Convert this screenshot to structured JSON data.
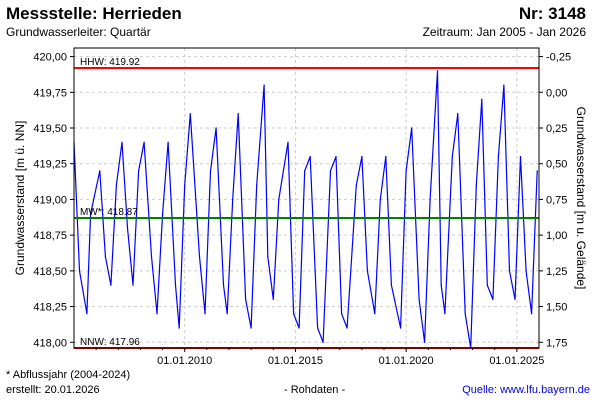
{
  "header": {
    "title": "Messstelle: Herrieden",
    "number": "Nr: 3148",
    "aquifer": "Grundwasserleiter: Quartär",
    "period": "Zeitraum: Jan 2005 - Jan 2026"
  },
  "footer": {
    "note": "* Abflussjahr (2004-2024)",
    "created": "erstellt:  20.01.2026",
    "raw": "- Rohdaten -",
    "source_label": "Quelle: ",
    "source_link": "www.lfu.bayern.de"
  },
  "colors": {
    "series": "#0000ff",
    "extreme_lines": "#ff0000",
    "mean_line": "#008000",
    "grid": "#cccccc"
  },
  "chart_data": {
    "type": "line",
    "ylabel": "Grundwasserstand [m ü. NN]",
    "y2label": "Grundwasserstand [m u. Gelände]",
    "xlim": [
      "2005-01",
      "2026-01"
    ],
    "ylim": [
      417.96,
      420.06
    ],
    "y_ticks": [
      "418,00",
      "418,25",
      "418,50",
      "418,75",
      "419,00",
      "419,25",
      "419,50",
      "419,75",
      "420,00"
    ],
    "y2_ticks": [
      "-0,25",
      "0,00",
      "0,25",
      "0,50",
      "0,75",
      "1,00",
      "1,25",
      "1,50",
      "1,75"
    ],
    "x_ticks": [
      "01.01.2010",
      "01.01.2015",
      "01.01.2020",
      "01.01.2025"
    ],
    "grid": true,
    "reference_lines": [
      {
        "label": "HHW: 419.92",
        "value": 419.92
      },
      {
        "label": "MW*: 418.87",
        "value": 418.87
      },
      {
        "label": "NNW: 417.96",
        "value": 417.96
      }
    ],
    "series": [
      {
        "x": [
          "2005-01",
          "2005-04",
          "2005-08",
          "2005-10",
          "2006-03",
          "2006-06",
          "2006-09",
          "2006-12",
          "2007-03",
          "2007-06",
          "2007-09",
          "2007-12",
          "2008-03",
          "2008-07",
          "2008-10",
          "2009-01",
          "2009-04",
          "2009-08",
          "2009-10",
          "2010-01",
          "2010-04",
          "2010-09",
          "2010-12",
          "2011-03",
          "2011-06",
          "2011-10",
          "2011-12",
          "2012-03",
          "2012-06",
          "2012-10",
          "2013-01",
          "2013-04",
          "2013-08",
          "2013-10",
          "2014-01",
          "2014-04",
          "2014-09",
          "2014-12",
          "2015-03",
          "2015-06",
          "2015-09",
          "2016-01",
          "2016-04",
          "2016-08",
          "2016-11",
          "2017-02",
          "2017-05",
          "2017-10",
          "2018-01",
          "2018-04",
          "2018-08",
          "2018-11",
          "2019-02",
          "2019-05",
          "2019-10",
          "2020-01",
          "2020-04",
          "2020-08",
          "2020-11",
          "2021-02",
          "2021-06",
          "2021-08",
          "2021-10",
          "2022-02",
          "2022-05",
          "2022-09",
          "2022-12",
          "2023-03",
          "2023-06",
          "2023-09",
          "2023-12",
          "2024-03",
          "2024-06",
          "2024-09",
          "2024-12",
          "2025-03",
          "2025-06",
          "2025-09",
          "2025-12"
        ],
        "y": [
          419.4,
          418.5,
          418.2,
          418.9,
          419.2,
          418.6,
          418.4,
          419.1,
          419.4,
          418.8,
          418.4,
          419.2,
          419.4,
          418.6,
          418.2,
          418.9,
          419.4,
          418.4,
          418.1,
          419.1,
          419.6,
          418.6,
          418.2,
          419.2,
          419.5,
          418.4,
          418.2,
          419.0,
          419.6,
          418.3,
          418.1,
          419.1,
          419.8,
          418.6,
          418.3,
          419.0,
          419.4,
          418.2,
          418.1,
          419.2,
          419.3,
          418.1,
          418.0,
          419.2,
          419.3,
          418.2,
          418.1,
          419.1,
          419.3,
          418.5,
          418.2,
          419.0,
          419.3,
          418.4,
          418.1,
          419.2,
          419.5,
          418.3,
          418.0,
          419.0,
          419.9,
          418.4,
          418.2,
          419.3,
          419.6,
          418.2,
          417.96,
          419.1,
          419.7,
          418.4,
          418.3,
          419.3,
          419.8,
          418.5,
          418.3,
          419.3,
          418.5,
          418.2,
          419.2
        ]
      }
    ]
  }
}
